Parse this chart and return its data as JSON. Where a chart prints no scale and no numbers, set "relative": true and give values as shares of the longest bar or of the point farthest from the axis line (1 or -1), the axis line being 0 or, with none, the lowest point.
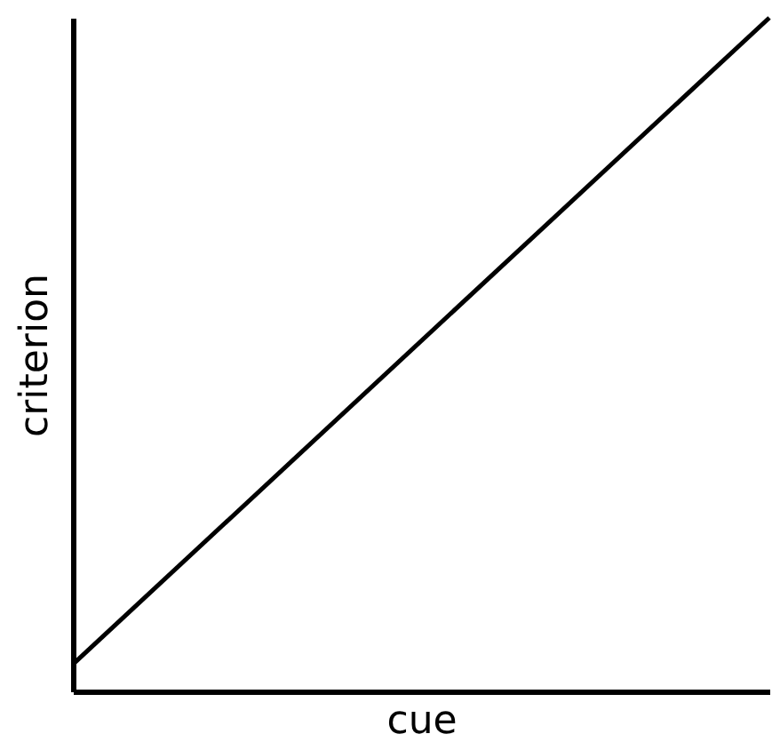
{
  "chart_data": {
    "type": "line",
    "xlabel": "cue",
    "ylabel": "criterion",
    "relative": true,
    "categories": [
      null,
      null
    ],
    "series": [
      {
        "color": "#000000",
        "values": [
          0.04,
          1
        ]
      }
    ],
    "grid": false,
    "legend": false,
    "marker": "none",
    "line_style": "solid",
    "tick_labels": false
  }
}
